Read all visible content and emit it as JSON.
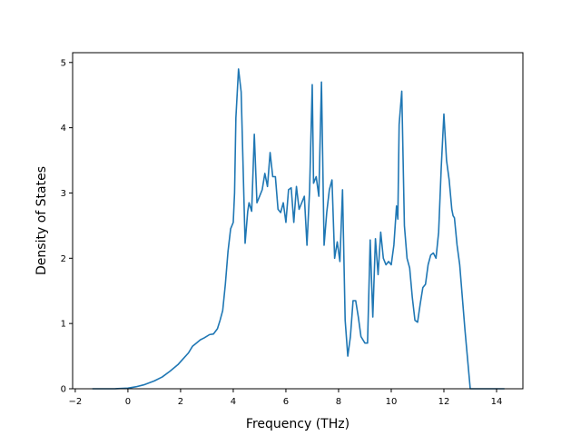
{
  "chart_data": {
    "type": "line",
    "title": "",
    "xlabel": "Frequency (THz)",
    "ylabel": "Density of States",
    "xlim": [
      -2.1,
      15.0
    ],
    "ylim": [
      0,
      5.15
    ],
    "x_ticks": [
      -2,
      0,
      2,
      4,
      6,
      8,
      10,
      12,
      14
    ],
    "y_ticks": [
      0,
      1,
      2,
      3,
      4,
      5
    ],
    "grid": false,
    "legend": "none",
    "line_color": "#1f77b4",
    "series": [
      {
        "x": [
          -1.35,
          -0.5,
          0.0,
          0.3,
          0.6,
          1.0,
          1.3,
          1.6,
          1.9,
          2.1,
          2.3,
          2.45,
          2.6,
          2.75,
          2.9,
          3.1,
          3.25,
          3.4,
          3.5,
          3.6,
          3.7,
          3.8,
          3.9,
          4.0,
          4.05,
          4.1,
          4.2,
          4.3,
          4.45,
          4.55,
          4.6,
          4.7,
          4.8,
          4.9,
          5.0,
          5.1,
          5.2,
          5.3,
          5.4,
          5.5,
          5.6,
          5.7,
          5.8,
          5.9,
          6.0,
          6.1,
          6.2,
          6.3,
          6.4,
          6.5,
          6.6,
          6.7,
          6.8,
          6.9,
          7.0,
          7.05,
          7.15,
          7.25,
          7.35,
          7.45,
          7.55,
          7.65,
          7.75,
          7.85,
          7.95,
          8.05,
          8.15,
          8.25,
          8.35,
          8.45,
          8.55,
          8.65,
          8.75,
          8.85,
          9.0,
          9.1,
          9.2,
          9.3,
          9.4,
          9.5,
          9.6,
          9.7,
          9.8,
          9.9,
          10.0,
          10.1,
          10.2,
          10.25,
          10.3,
          10.4,
          10.5,
          10.6,
          10.7,
          10.8,
          10.9,
          11.0,
          11.1,
          11.2,
          11.3,
          11.4,
          11.5,
          11.6,
          11.7,
          11.8,
          11.9,
          12.0,
          12.1,
          12.2,
          12.3,
          12.35,
          12.4,
          12.5,
          12.6,
          12.7,
          12.8,
          12.9,
          13.0,
          13.1,
          13.5,
          14.3
        ],
        "y": [
          0,
          0,
          0.01,
          0.03,
          0.06,
          0.12,
          0.18,
          0.27,
          0.37,
          0.46,
          0.55,
          0.65,
          0.7,
          0.75,
          0.78,
          0.83,
          0.84,
          0.92,
          1.05,
          1.2,
          1.6,
          2.1,
          2.45,
          2.55,
          3.0,
          4.15,
          4.9,
          4.55,
          2.23,
          2.72,
          2.85,
          2.72,
          3.9,
          2.85,
          2.95,
          3.05,
          3.3,
          3.1,
          3.62,
          3.25,
          3.25,
          2.75,
          2.7,
          2.85,
          2.55,
          3.05,
          3.08,
          2.55,
          3.1,
          2.75,
          2.85,
          2.95,
          2.2,
          3.05,
          4.66,
          3.15,
          3.25,
          2.95,
          4.7,
          2.2,
          2.7,
          3.05,
          3.2,
          2.0,
          2.25,
          1.95,
          3.05,
          1.05,
          0.5,
          0.8,
          1.35,
          1.35,
          1.1,
          0.8,
          0.7,
          0.7,
          2.28,
          1.1,
          2.3,
          1.75,
          2.4,
          2.0,
          1.9,
          1.95,
          1.9,
          2.2,
          2.8,
          2.6,
          4.05,
          4.56,
          2.5,
          2.0,
          1.85,
          1.4,
          1.05,
          1.02,
          1.3,
          1.55,
          1.6,
          1.9,
          2.05,
          2.08,
          2.0,
          2.4,
          3.4,
          4.21,
          3.5,
          3.2,
          2.75,
          2.65,
          2.62,
          2.2,
          1.9,
          1.4,
          0.9,
          0.45,
          0.0,
          0.0,
          0.0,
          0.0
        ]
      }
    ]
  }
}
